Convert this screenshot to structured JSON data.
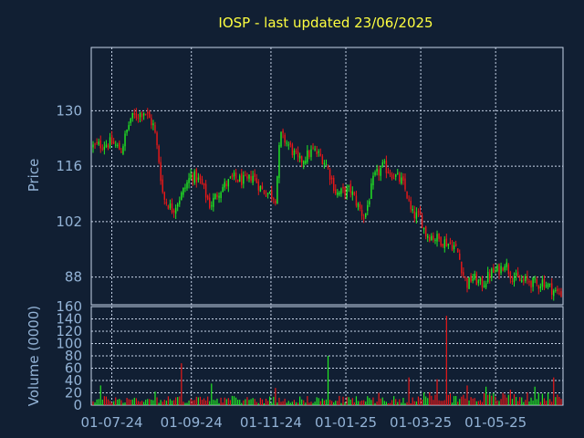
{
  "chart_data": [
    {
      "type": "candlestick",
      "title": "IOSP - last updated 23/06/2025",
      "ylabel": "Price",
      "ylim": [
        81,
        146
      ],
      "yticks": [
        88,
        102,
        116,
        130
      ],
      "ytick_labels": [
        "88",
        "102",
        "116",
        "130"
      ],
      "grid": true,
      "colors": {
        "up": "#22e822",
        "down": "#e81818",
        "grid": "#c8d4e8",
        "axis_text": "#93b3d6",
        "title": "#ffff40",
        "background": "#111f33"
      },
      "anchors": [
        {
          "x": 0.0,
          "y": 121
        },
        {
          "x": 0.04,
          "y": 122
        },
        {
          "x": 0.06,
          "y": 120
        },
        {
          "x": 0.08,
          "y": 128
        },
        {
          "x": 0.11,
          "y": 130
        },
        {
          "x": 0.13,
          "y": 126
        },
        {
          "x": 0.14,
          "y": 118
        },
        {
          "x": 0.15,
          "y": 108
        },
        {
          "x": 0.17,
          "y": 105
        },
        {
          "x": 0.19,
          "y": 109
        },
        {
          "x": 0.21,
          "y": 114
        },
        {
          "x": 0.23,
          "y": 112
        },
        {
          "x": 0.25,
          "y": 106
        },
        {
          "x": 0.27,
          "y": 110
        },
        {
          "x": 0.3,
          "y": 113
        },
        {
          "x": 0.33,
          "y": 112
        },
        {
          "x": 0.34,
          "y": 114
        },
        {
          "x": 0.36,
          "y": 110
        },
        {
          "x": 0.38,
          "y": 109
        },
        {
          "x": 0.39,
          "y": 108
        },
        {
          "x": 0.4,
          "y": 124
        },
        {
          "x": 0.42,
          "y": 121
        },
        {
          "x": 0.44,
          "y": 117
        },
        {
          "x": 0.47,
          "y": 120
        },
        {
          "x": 0.49,
          "y": 118
        },
        {
          "x": 0.5,
          "y": 116
        },
        {
          "x": 0.52,
          "y": 109
        },
        {
          "x": 0.55,
          "y": 110
        },
        {
          "x": 0.57,
          "y": 105
        },
        {
          "x": 0.58,
          "y": 103
        },
        {
          "x": 0.6,
          "y": 113
        },
        {
          "x": 0.62,
          "y": 116
        },
        {
          "x": 0.64,
          "y": 114
        },
        {
          "x": 0.66,
          "y": 112
        },
        {
          "x": 0.67,
          "y": 109
        },
        {
          "x": 0.68,
          "y": 104
        },
        {
          "x": 0.7,
          "y": 103
        },
        {
          "x": 0.71,
          "y": 99
        },
        {
          "x": 0.73,
          "y": 98
        },
        {
          "x": 0.75,
          "y": 97
        },
        {
          "x": 0.77,
          "y": 96
        },
        {
          "x": 0.78,
          "y": 94
        },
        {
          "x": 0.79,
          "y": 89
        },
        {
          "x": 0.8,
          "y": 86
        },
        {
          "x": 0.81,
          "y": 88
        },
        {
          "x": 0.83,
          "y": 86
        },
        {
          "x": 0.85,
          "y": 89
        },
        {
          "x": 0.87,
          "y": 90
        },
        {
          "x": 0.88,
          "y": 92
        },
        {
          "x": 0.89,
          "y": 89
        },
        {
          "x": 0.9,
          "y": 88
        },
        {
          "x": 0.91,
          "y": 87
        },
        {
          "x": 0.93,
          "y": 87
        },
        {
          "x": 0.95,
          "y": 86
        },
        {
          "x": 0.96,
          "y": 87
        },
        {
          "x": 0.97,
          "y": 86
        },
        {
          "x": 0.99,
          "y": 84
        },
        {
          "x": 1.0,
          "y": 84
        }
      ]
    },
    {
      "type": "bar",
      "ylabel": "Volume (0000)",
      "ylim": [
        0,
        160
      ],
      "yticks": [
        0,
        20,
        40,
        60,
        80,
        100,
        120,
        140,
        160
      ],
      "ytick_labels": [
        "0",
        "20",
        "40",
        "60",
        "80",
        "100",
        "120",
        "140",
        "160"
      ],
      "xtick_labels": [
        "01-07-24",
        "01-09-24",
        "01-11-24",
        "01-01-25",
        "01-03-25",
        "01-05-25"
      ],
      "xtick_positions": [
        0.04,
        0.21,
        0.38,
        0.54,
        0.7,
        0.86
      ],
      "grid": true,
      "typical_volume": 10,
      "spikes": [
        {
          "x": 0.19,
          "v": 68
        },
        {
          "x": 0.503,
          "v": 80
        },
        {
          "x": 0.754,
          "v": 145
        },
        {
          "x": 0.675,
          "v": 45
        },
        {
          "x": 0.735,
          "v": 42
        },
        {
          "x": 0.985,
          "v": 45
        },
        {
          "x": 0.255,
          "v": 35
        },
        {
          "x": 0.015,
          "v": 32
        },
        {
          "x": 0.388,
          "v": 28
        },
        {
          "x": 0.612,
          "v": 20
        },
        {
          "x": 0.8,
          "v": 32
        },
        {
          "x": 0.84,
          "v": 30
        },
        {
          "x": 0.945,
          "v": 30
        },
        {
          "x": 0.89,
          "v": 25
        },
        {
          "x": 0.133,
          "v": 22
        }
      ]
    }
  ]
}
